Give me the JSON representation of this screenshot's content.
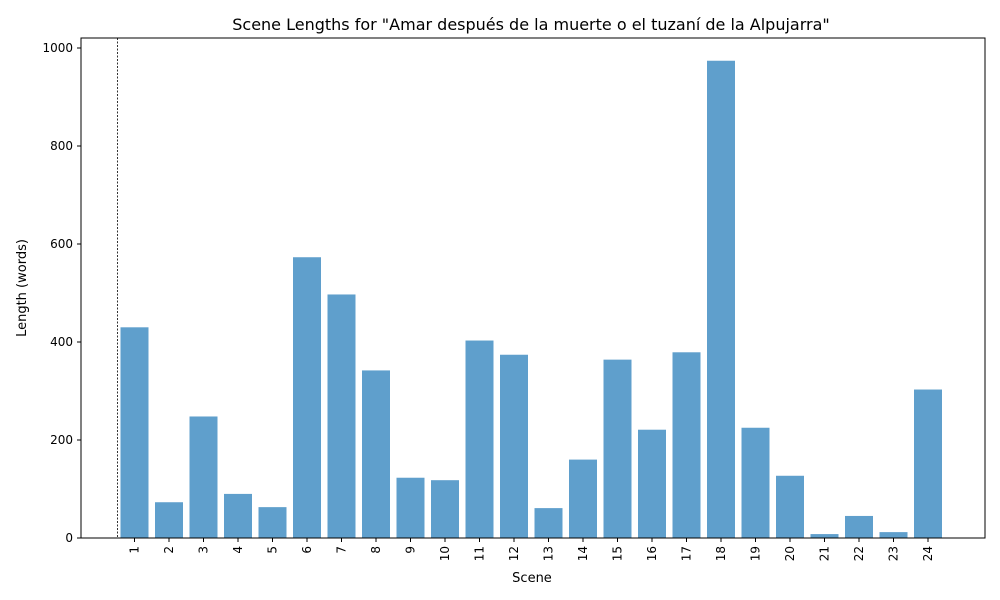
{
  "chart_data": {
    "type": "bar",
    "title": "Scene Lengths for \"Amar después de la muerte o el tuzaní de la Alpujarra\"",
    "xlabel": "Scene",
    "ylabel": "Length (words)",
    "categories": [
      "1",
      "2",
      "3",
      "4",
      "5",
      "6",
      "7",
      "8",
      "9",
      "10",
      "11",
      "12",
      "13",
      "14",
      "15",
      "16",
      "17",
      "18",
      "19",
      "20",
      "21",
      "22",
      "23",
      "24"
    ],
    "values": [
      430,
      73,
      248,
      90,
      63,
      573,
      497,
      342,
      123,
      118,
      403,
      374,
      61,
      160,
      364,
      221,
      379,
      974,
      225,
      127,
      8,
      45,
      12,
      303
    ],
    "ylim": [
      0,
      1000
    ],
    "yticks": [
      0,
      200,
      400,
      600,
      800,
      1000
    ],
    "bar_color": "#5f9fcc",
    "grid": false,
    "reference_line": {
      "style": "dotted",
      "position": "before scene 1"
    }
  }
}
